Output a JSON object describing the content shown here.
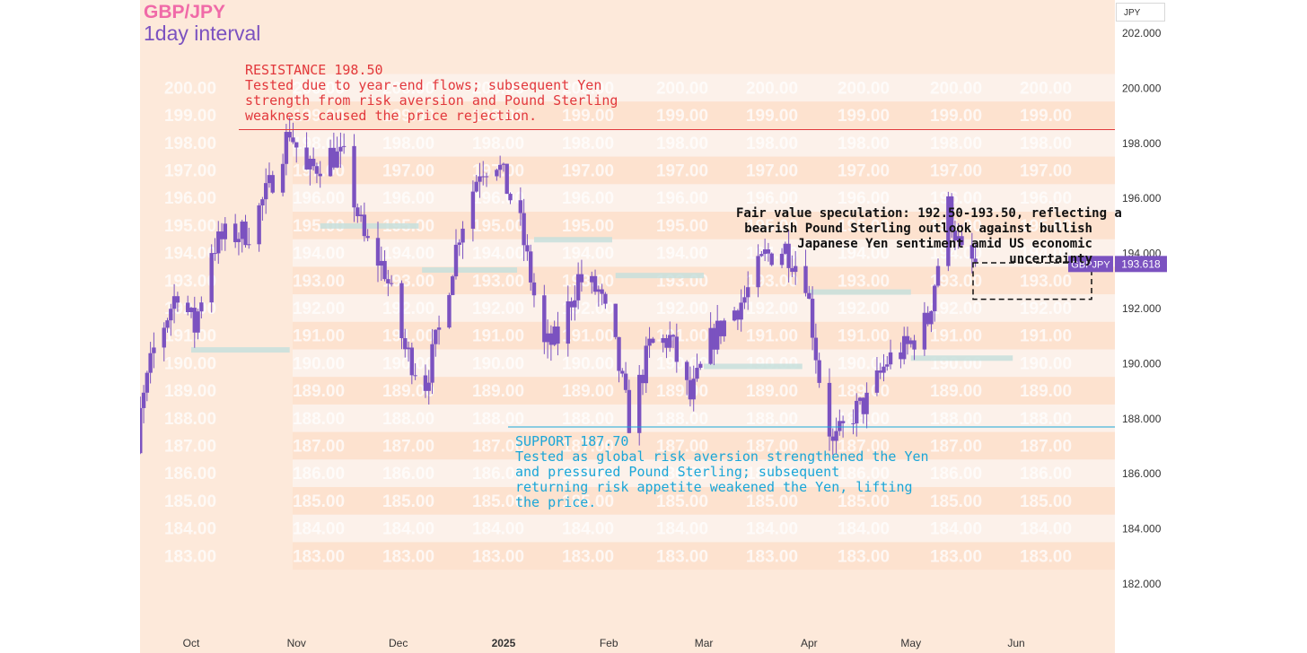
{
  "header": {
    "pair": "GBP/JPY",
    "interval": "1day interval"
  },
  "unit_box": "JPY",
  "price_badge": {
    "symbol": "GBPJPY",
    "value": "193.618"
  },
  "annotations": {
    "resistance": {
      "title": "RESISTANCE 198.50",
      "text": "Tested due to year-end flows; subsequent Yen\nstrength from risk aversion and Pound Sterling\nweakness caused the price rejection."
    },
    "support": {
      "title": "SUPPORT 187.70",
      "text": "Tested as global risk aversion strengthened the Yen\nand pressured Pound Sterling; subsequent\nreturning risk appetite weakened the Yen, lifting\nthe price."
    },
    "fair_value": {
      "text": "Fair value speculation: 192.50-193.50, reflecting a\nbearish Pound Sterling outlook against bullish\nJapanese Yen sentiment amid US economic\nuncertainty"
    }
  },
  "colors": {
    "up": "#7b52c0",
    "resistance": "#e2383c",
    "support": "#1aa6d8",
    "bg": "#fde9da",
    "band_light": "#fcf1ea",
    "band_dark": "#fde2cf",
    "watermark": "#ffffff"
  },
  "chart_data": {
    "type": "candlestick",
    "title": "GBP/JPY",
    "subtitle": "1day interval",
    "y_axis": {
      "unit": "JPY",
      "ticks": [
        "182.000",
        "184.000",
        "186.000",
        "188.000",
        "190.000",
        "192.000",
        "194.000",
        "196.000",
        "198.000",
        "200.000",
        "202.000"
      ],
      "range": [
        181,
        203.2
      ]
    },
    "x_axis": {
      "labels": [
        {
          "label": "Oct",
          "date": "2024-10-01"
        },
        {
          "label": "Nov",
          "date": "2024-11-01"
        },
        {
          "label": "Dec",
          "date": "2024-12-01"
        },
        {
          "label": "2025",
          "date": "2025-01-01"
        },
        {
          "label": "Feb",
          "date": "2025-02-01"
        },
        {
          "label": "Mar",
          "date": "2025-03-01"
        },
        {
          "label": "Apr",
          "date": "2025-04-01"
        },
        {
          "label": "May",
          "date": "2025-05-01"
        },
        {
          "label": "Jun",
          "date": "2025-06-01"
        }
      ]
    },
    "levels": {
      "resistance": 198.5,
      "support": 187.7,
      "fair_value_zone": [
        192.5,
        193.5
      ],
      "last_price": 193.618
    },
    "watermark_levels": [
      200,
      199,
      198,
      197,
      196,
      195,
      194,
      193,
      192,
      191,
      190,
      189,
      188,
      187,
      186,
      185,
      184,
      183
    ],
    "watermark_label_format": "2 decimals",
    "closes": [
      {
        "date": "2024-09-09",
        "close": 184.9
      },
      {
        "date": "2024-09-13",
        "close": 186.4
      },
      {
        "date": "2024-09-20",
        "close": 190.5
      },
      {
        "date": "2024-09-27",
        "close": 192.7
      },
      {
        "date": "2024-10-02",
        "close": 191.3
      },
      {
        "date": "2024-10-07",
        "close": 194.2
      },
      {
        "date": "2024-10-11",
        "close": 194.6
      },
      {
        "date": "2024-10-18",
        "close": 194.8
      },
      {
        "date": "2024-10-24",
        "close": 196.4
      },
      {
        "date": "2024-10-30",
        "close": 198.5
      },
      {
        "date": "2024-11-04",
        "close": 196.9
      },
      {
        "date": "2024-11-11",
        "close": 197.6
      },
      {
        "date": "2024-11-15",
        "close": 197.4
      },
      {
        "date": "2024-11-21",
        "close": 194.5
      },
      {
        "date": "2024-11-27",
        "close": 193.4
      },
      {
        "date": "2024-12-03",
        "close": 190.5
      },
      {
        "date": "2024-12-09",
        "close": 189.3
      },
      {
        "date": "2024-12-13",
        "close": 191.2
      },
      {
        "date": "2024-12-19",
        "close": 194.8
      },
      {
        "date": "2024-12-25",
        "close": 197.1
      },
      {
        "date": "2024-12-30",
        "close": 197.4
      },
      {
        "date": "2025-01-06",
        "close": 195.0
      },
      {
        "date": "2025-01-13",
        "close": 190.6
      },
      {
        "date": "2025-01-17",
        "close": 190.9
      },
      {
        "date": "2025-01-23",
        "close": 193.1
      },
      {
        "date": "2025-01-29",
        "close": 192.6
      },
      {
        "date": "2025-02-03",
        "close": 190.5
      },
      {
        "date": "2025-02-07",
        "close": 187.9
      },
      {
        "date": "2025-02-13",
        "close": 190.6
      },
      {
        "date": "2025-02-19",
        "close": 190.9
      },
      {
        "date": "2025-02-25",
        "close": 188.7
      },
      {
        "date": "2025-03-03",
        "close": 190.8
      },
      {
        "date": "2025-03-07",
        "close": 191.5
      },
      {
        "date": "2025-03-13",
        "close": 192.4
      },
      {
        "date": "2025-03-19",
        "close": 193.9
      },
      {
        "date": "2025-03-25",
        "close": 194.2
      },
      {
        "date": "2025-03-31",
        "close": 193.1
      },
      {
        "date": "2025-04-04",
        "close": 189.5
      },
      {
        "date": "2025-04-08",
        "close": 187.0
      },
      {
        "date": "2025-04-14",
        "close": 188.2
      },
      {
        "date": "2025-04-18",
        "close": 188.6
      },
      {
        "date": "2025-04-24",
        "close": 190.1
      },
      {
        "date": "2025-04-30",
        "close": 190.6
      },
      {
        "date": "2025-05-06",
        "close": 191.6
      },
      {
        "date": "2025-05-12",
        "close": 195.7
      },
      {
        "date": "2025-05-16",
        "close": 193.9
      },
      {
        "date": "2025-05-20",
        "close": 193.6
      }
    ]
  }
}
